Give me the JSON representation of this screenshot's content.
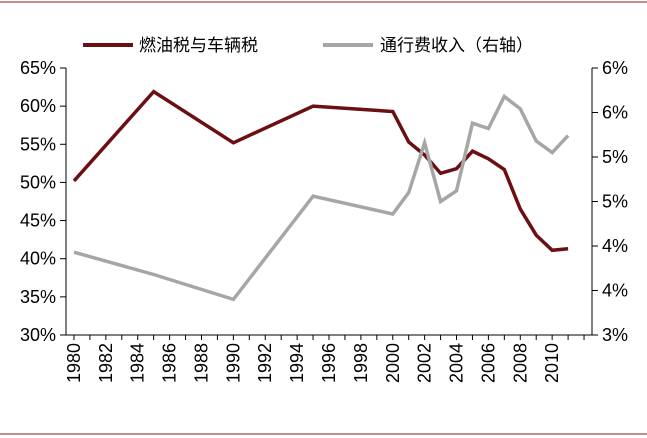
{
  "chart_data": {
    "type": "line",
    "title": "",
    "xlabel": "",
    "ylabel_left": "",
    "ylabel_right": "",
    "legend_position": "top",
    "grid": false,
    "x_ticks": [
      "1980",
      "1982",
      "1984",
      "1986",
      "1988",
      "1990",
      "1992",
      "1994",
      "1996",
      "1998",
      "2000",
      "2002",
      "2004",
      "2006",
      "2008",
      "2010"
    ],
    "x_range": [
      1979.5,
      2012.5
    ],
    "y_left": {
      "range": [
        30,
        65
      ],
      "ticks": [
        30,
        35,
        40,
        45,
        50,
        55,
        60,
        65
      ],
      "tick_labels": [
        "30%",
        "35%",
        "40%",
        "45%",
        "50%",
        "55%",
        "60%",
        "65%"
      ]
    },
    "y_right": {
      "range": [
        3,
        6
      ],
      "ticks": [
        3,
        3.5,
        4,
        4.5,
        5,
        5.5,
        6
      ],
      "tick_labels": [
        "3%",
        "4%",
        "4%",
        "5%",
        "5%",
        "6%",
        "6%"
      ]
    },
    "series": [
      {
        "name": "燃油税与车辆税",
        "axis": "left",
        "color": "#6b0f12",
        "x": [
          1980,
          1985,
          1990,
          1995,
          2000,
          2001,
          2002,
          2003,
          2004,
          2005,
          2006,
          2007,
          2008,
          2009,
          2010,
          2011
        ],
        "y": [
          50.2,
          61.9,
          55.2,
          60.0,
          59.3,
          55.3,
          53.6,
          51.2,
          51.8,
          54.1,
          53.1,
          51.7,
          46.5,
          43.1,
          41.1,
          41.3
        ]
      },
      {
        "name": "通行费收入（右轴）",
        "axis": "right",
        "color": "#a6a6a6",
        "x": [
          1980,
          1985,
          1990,
          1995,
          2000,
          2001,
          2002,
          2003,
          2004,
          2005,
          2006,
          2007,
          2008,
          2009,
          2010,
          2011
        ],
        "y": [
          3.93,
          3.68,
          3.4,
          4.56,
          4.36,
          4.6,
          5.16,
          4.5,
          4.62,
          5.38,
          5.32,
          5.68,
          5.54,
          5.18,
          5.05,
          5.24
        ]
      }
    ]
  }
}
